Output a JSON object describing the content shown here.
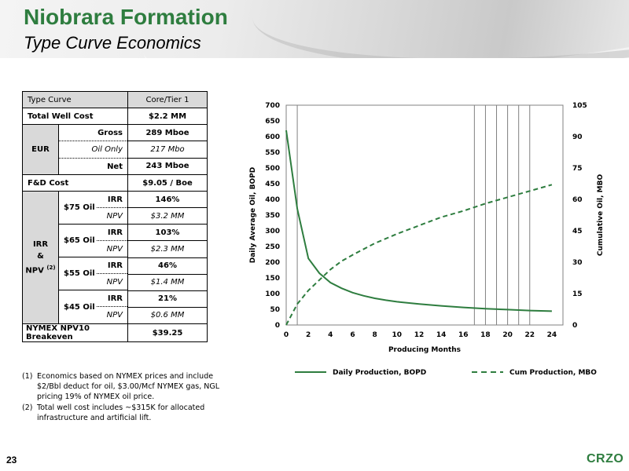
{
  "header": {
    "title": "Niobrara Formation",
    "subtitle": "Type Curve Economics"
  },
  "table": {
    "col1_header": "Type Curve",
    "col2_header": "Core/Tier 1",
    "total_well_cost_label": "Total Well Cost",
    "total_well_cost_value": "$2.2 MM",
    "eur_label": "EUR",
    "eur_gross_label": "Gross",
    "eur_gross_value": "289 Mboe",
    "eur_oil_label": "Oil Only",
    "eur_oil_value": "217 Mbo",
    "eur_net_label": "Net",
    "eur_net_value": "243 Mboe",
    "fd_cost_label": "F&D Cost",
    "fd_cost_value": "$9.05 / Boe",
    "irr_group_line1": "IRR",
    "irr_group_line2": "&",
    "irr_group_line3": "NPV",
    "irr_group_sup": "(2)",
    "irr_label": "IRR",
    "npv_label": "NPV",
    "scenarios": [
      {
        "price": "$75 Oil",
        "irr": "146%",
        "npv": "$3.2 MM"
      },
      {
        "price": "$65 Oil",
        "irr": "103%",
        "npv": "$2.3 MM"
      },
      {
        "price": "$55 Oil",
        "irr": "46%",
        "npv": "$1.4 MM"
      },
      {
        "price": "$45 Oil",
        "irr": "21%",
        "npv": "$0.6 MM"
      }
    ],
    "breakeven_label": "NYMEX NPV10 Breakeven",
    "breakeven_value": "$39.25"
  },
  "footnotes": [
    {
      "num": "(1)",
      "text": "Economics based on NYMEX prices and include $2/Bbl deduct for oil,  $3.00/Mcf NYMEX gas, NGL pricing 19% of NYMEX oil price."
    },
    {
      "num": "(2)",
      "text": "Total well cost includes ~$315K for allocated infrastructure and artificial lift."
    }
  ],
  "chart_data": {
    "type": "line",
    "xlabel": "Producing Months",
    "ylabel_left": "Daily Average Oil, BOPD",
    "ylabel_right": "Cumulative Oil, MBO",
    "xlim": [
      0,
      25
    ],
    "ylim_left": [
      0,
      700
    ],
    "ylim_right": [
      0,
      105
    ],
    "x_ticks": [
      0,
      2,
      4,
      6,
      8,
      10,
      12,
      14,
      16,
      18,
      20,
      22,
      24
    ],
    "y_left_ticks": [
      0,
      50,
      100,
      150,
      200,
      250,
      300,
      350,
      400,
      450,
      500,
      550,
      600,
      650,
      700
    ],
    "y_right_ticks": [
      0,
      15,
      30,
      45,
      60,
      75,
      90,
      105
    ],
    "vertical_gridlines_x": [
      1,
      17,
      18,
      19,
      20,
      21,
      22
    ],
    "grid": false,
    "legend_position": "bottom",
    "series": [
      {
        "name": "Daily Production, BOPD",
        "axis": "left",
        "style": "solid",
        "color": "#2e7d3f",
        "x": [
          0,
          1,
          2,
          3,
          4,
          5,
          6,
          7,
          8,
          9,
          10,
          12,
          14,
          16,
          18,
          20,
          22,
          24
        ],
        "values": [
          620,
          370,
          212,
          165,
          135,
          117,
          103,
          93,
          85,
          79,
          74,
          67,
          61,
          56,
          52,
          49,
          46,
          44
        ]
      },
      {
        "name": "Cum Production, MBO",
        "axis": "right",
        "style": "dashed",
        "color": "#2e7d3f",
        "x": [
          0,
          1,
          2,
          3,
          4,
          5,
          6,
          8,
          10,
          12,
          14,
          16,
          18,
          20,
          22,
          24
        ],
        "values": [
          0,
          10,
          16.5,
          21.5,
          26.5,
          30.5,
          33.5,
          39,
          43.5,
          47.5,
          51.5,
          54.5,
          58,
          61,
          64,
          67
        ]
      }
    ]
  },
  "footer": {
    "page_number": "23",
    "logo": "CRZO"
  },
  "colors": {
    "brand_green": "#2e7d3f",
    "table_gray": "#d9d9d9"
  }
}
